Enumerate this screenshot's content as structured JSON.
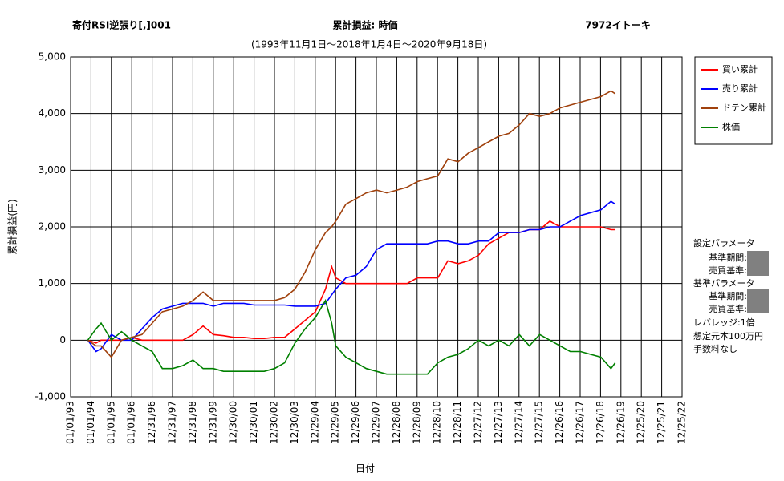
{
  "chart_data": {
    "type": "line",
    "title": "寄付RSI逆張り[,]001",
    "subtitle_center": "累計損益: 時価",
    "subtitle_right": "7972イトーキ",
    "period": "(1993年11月1日～2018年1月4日～2020年9月18日)",
    "y_label": "累計損益(円)",
    "x_label": "日付",
    "grid": true,
    "legend": "right",
    "xlim": [
      "01/01/93",
      "12/25/22"
    ],
    "xticks": [
      "01/01/93",
      "01/01/94",
      "01/01/95",
      "01/01/96",
      "12/31/96",
      "12/31/97",
      "12/31/98",
      "12/31/99",
      "12/30/00",
      "12/30/01",
      "12/30/02",
      "12/30/03",
      "12/29/04",
      "12/29/05",
      "12/29/06",
      "12/29/07",
      "12/28/08",
      "12/28/09",
      "12/28/10",
      "12/28/11",
      "12/27/12",
      "12/27/13",
      "12/27/14",
      "12/27/15",
      "12/26/16",
      "12/26/17",
      "12/26/18",
      "12/26/19",
      "12/25/20",
      "12/25/21",
      "12/25/22"
    ],
    "ylim": [
      -1000,
      5000
    ],
    "yticks": [
      {
        "value": -1000,
        "label": "-1,000",
        "color": "#ff0000"
      },
      0,
      {
        "value": 1000,
        "label": "1,000"
      },
      {
        "value": 2000,
        "label": "2,000"
      },
      {
        "value": 3000,
        "label": "3,000"
      },
      {
        "value": 4000,
        "label": "4,000"
      },
      {
        "value": 5000,
        "label": "5,000"
      }
    ],
    "x": [
      "11/05/93",
      "04/01/94",
      "07/01/94",
      "01/01/95",
      "07/01/95",
      "01/01/96",
      "07/01/96",
      "01/01/97",
      "07/01/97",
      "01/01/98",
      "07/01/98",
      "01/01/99",
      "07/01/99",
      "01/01/00",
      "07/01/00",
      "01/01/01",
      "07/01/01",
      "01/01/02",
      "07/01/02",
      "01/01/03",
      "07/01/03",
      "01/01/04",
      "07/01/04",
      "01/01/05",
      "07/01/05",
      "10/20/05",
      "01/01/06",
      "07/01/06",
      "01/01/07",
      "07/01/07",
      "01/01/08",
      "07/01/08",
      "01/01/09",
      "07/01/09",
      "01/01/10",
      "07/01/10",
      "01/01/11",
      "07/01/11",
      "01/01/12",
      "07/01/12",
      "01/01/13",
      "07/01/13",
      "01/01/14",
      "07/01/14",
      "01/01/15",
      "07/01/15",
      "01/01/16",
      "07/01/16",
      "01/01/17",
      "07/01/17",
      "01/01/18",
      "07/01/18",
      "01/01/19",
      "07/01/19",
      "09/15/19"
    ],
    "series": [
      {
        "name": "買い累計",
        "color": "#ff0000",
        "values": [
          0,
          -50,
          0,
          0,
          0,
          50,
          0,
          0,
          0,
          0,
          0,
          100,
          250,
          100,
          80,
          50,
          50,
          30,
          30,
          50,
          50,
          200,
          350,
          500,
          900,
          1300,
          1100,
          1000,
          1000,
          1000,
          1000,
          1000,
          1000,
          1000,
          1100,
          1100,
          1100,
          1400,
          1350,
          1400,
          1500,
          1700,
          1800,
          1900,
          1900,
          1950,
          1950,
          2100,
          2000,
          2000,
          2000,
          2000,
          2000,
          1950,
          1950
        ]
      },
      {
        "name": "売り累計",
        "color": "#0000ff",
        "values": [
          0,
          -200,
          -150,
          100,
          0,
          0,
          200,
          400,
          550,
          600,
          650,
          650,
          650,
          600,
          650,
          650,
          650,
          620,
          620,
          620,
          620,
          600,
          600,
          600,
          650,
          800,
          900,
          1100,
          1150,
          1300,
          1600,
          1700,
          1700,
          1700,
          1700,
          1700,
          1750,
          1750,
          1700,
          1700,
          1750,
          1750,
          1900,
          1900,
          1900,
          1950,
          1950,
          2000,
          2000,
          2100,
          2200,
          2250,
          2300,
          2450,
          2400
        ]
      },
      {
        "name": "ドテン累計",
        "color": "#a0410d",
        "values": [
          0,
          -100,
          -100,
          -300,
          0,
          50,
          100,
          300,
          500,
          550,
          600,
          700,
          850,
          700,
          700,
          700,
          700,
          700,
          700,
          700,
          750,
          900,
          1200,
          1600,
          1900,
          2000,
          2100,
          2400,
          2500,
          2600,
          2650,
          2600,
          2650,
          2700,
          2800,
          2850,
          2900,
          3200,
          3150,
          3300,
          3400,
          3500,
          3600,
          3650,
          3800,
          4000,
          3950,
          4000,
          4100,
          4150,
          4200,
          4250,
          4300,
          4400,
          4350
        ]
      },
      {
        "name": "株価",
        "color": "#008000",
        "values": [
          0,
          200,
          300,
          0,
          150,
          0,
          -100,
          -200,
          -500,
          -500,
          -450,
          -350,
          -500,
          -500,
          -550,
          -550,
          -550,
          -550,
          -550,
          -500,
          -400,
          -50,
          200,
          400,
          700,
          300,
          -100,
          -300,
          -400,
          -500,
          -550,
          -600,
          -600,
          -600,
          -600,
          -600,
          -400,
          -300,
          -250,
          -150,
          0,
          -100,
          0,
          -100,
          100,
          -100,
          100,
          0,
          -100,
          -200,
          -200,
          -250,
          -300,
          -500,
          -400
        ]
      }
    ],
    "side_panel": [
      "設定パラメータ",
      "基準期間:",
      "売買基準:",
      "基準パラメータ",
      "基準期間:",
      "売買基準:",
      "レバレッジ:1倍",
      "想定元本100万円",
      "手数料なし"
    ]
  }
}
